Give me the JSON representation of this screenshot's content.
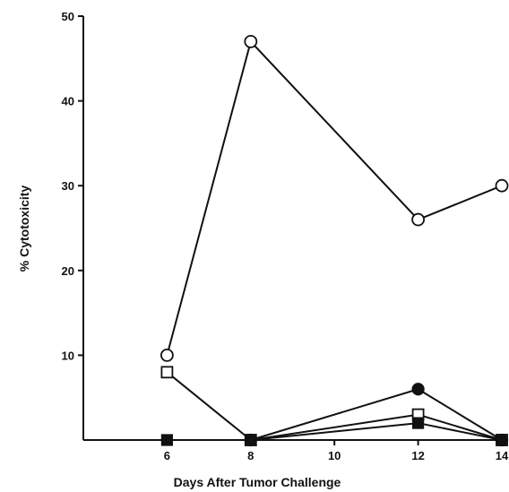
{
  "chart_data": {
    "type": "line",
    "xlabel": "Days After Tumor Challenge",
    "ylabel": "% Cytotoxicity",
    "xlim": [
      4,
      14
    ],
    "ylim": [
      0,
      50
    ],
    "x_ticks": [
      6,
      8,
      10,
      12,
      14
    ],
    "y_ticks": [
      10,
      20,
      30,
      40,
      50
    ],
    "grid": false,
    "series": [
      {
        "marker": "open-circle",
        "x": [
          6,
          8,
          12,
          14
        ],
        "y": [
          10,
          47,
          26,
          30
        ]
      },
      {
        "marker": "open-square",
        "x": [
          6,
          8,
          12,
          14
        ],
        "y": [
          8,
          0,
          3,
          0
        ]
      },
      {
        "marker": "filled-circle",
        "x": [
          8,
          12,
          14
        ],
        "y": [
          0,
          6,
          0
        ]
      },
      {
        "marker": "filled-square",
        "x": [
          6,
          8,
          12,
          14
        ],
        "y": [
          0,
          0,
          2,
          0
        ]
      }
    ]
  }
}
